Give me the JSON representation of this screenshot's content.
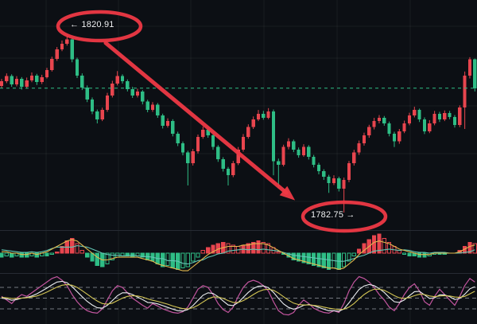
{
  "chart_data": {
    "type": "candlestick",
    "style_note": "dark trading chart, CN color convention (red=up, green=down), no visible axes",
    "annotations": {
      "high": {
        "label": "← 1820.91",
        "value": 1820.91
      },
      "low": {
        "label": "1782.75 →",
        "value": 1782.75
      }
    },
    "price": {
      "last_price": 1809.6,
      "candles": [
        [
          1810.1,
          1811.6,
          1809.6,
          1811.1
        ],
        [
          1811.1,
          1812.8,
          1810.7,
          1812.2
        ],
        [
          1812.2,
          1812.6,
          1809.9,
          1810.4
        ],
        [
          1810.4,
          1812.2,
          1810.0,
          1811.6
        ],
        [
          1811.6,
          1812.0,
          1809.3,
          1809.9
        ],
        [
          1809.9,
          1811.9,
          1809.5,
          1811.3
        ],
        [
          1811.3,
          1813.0,
          1810.9,
          1812.3
        ],
        [
          1812.3,
          1812.7,
          1810.3,
          1810.9
        ],
        [
          1810.9,
          1812.5,
          1810.5,
          1812.0
        ],
        [
          1812.0,
          1814.0,
          1811.7,
          1813.5
        ],
        [
          1813.5,
          1816.4,
          1813.2,
          1815.9
        ],
        [
          1815.9,
          1818.5,
          1815.5,
          1818.0
        ],
        [
          1818.0,
          1819.9,
          1817.6,
          1819.2
        ],
        [
          1819.2,
          1820.91,
          1818.8,
          1820.1
        ],
        [
          1820.1,
          1820.5,
          1815.2,
          1815.8
        ],
        [
          1815.8,
          1816.2,
          1811.8,
          1812.3
        ],
        [
          1812.3,
          1812.8,
          1809.2,
          1809.7
        ],
        [
          1809.7,
          1810.2,
          1806.6,
          1807.2
        ],
        [
          1807.2,
          1807.6,
          1804.0,
          1804.6
        ],
        [
          1804.6,
          1805.0,
          1802.0,
          1802.9
        ],
        [
          1802.9,
          1805.4,
          1802.5,
          1804.9
        ],
        [
          1804.9,
          1808.6,
          1804.5,
          1808.0
        ],
        [
          1808.0,
          1811.2,
          1807.6,
          1810.6
        ],
        [
          1810.6,
          1813.3,
          1810.2,
          1812.2
        ],
        [
          1812.2,
          1812.6,
          1810.6,
          1811.1
        ],
        [
          1811.1,
          1811.5,
          1808.9,
          1809.4
        ],
        [
          1809.4,
          1809.9,
          1807.5,
          1808.0
        ],
        [
          1808.0,
          1809.5,
          1807.6,
          1808.9
        ],
        [
          1808.9,
          1809.2,
          1806.1,
          1806.7
        ],
        [
          1806.7,
          1807.1,
          1804.4,
          1804.9
        ],
        [
          1804.9,
          1806.6,
          1804.5,
          1806.0
        ],
        [
          1806.0,
          1806.4,
          1803.2,
          1803.7
        ],
        [
          1803.7,
          1804.1,
          1800.9,
          1801.5
        ],
        [
          1801.5,
          1803.1,
          1801.1,
          1802.5
        ],
        [
          1802.5,
          1802.9,
          1799.2,
          1799.8
        ],
        [
          1799.8,
          1800.2,
          1797.1,
          1797.7
        ],
        [
          1797.7,
          1798.1,
          1795.1,
          1795.7
        ],
        [
          1795.7,
          1796.1,
          1788.6,
          1793.4
        ],
        [
          1793.4,
          1796.5,
          1792.9,
          1796.0
        ],
        [
          1796.0,
          1799.6,
          1795.5,
          1799.1
        ],
        [
          1799.1,
          1801.3,
          1798.7,
          1800.6
        ],
        [
          1800.6,
          1801.1,
          1798.9,
          1799.4
        ],
        [
          1799.4,
          1799.8,
          1796.3,
          1796.9
        ],
        [
          1796.9,
          1797.3,
          1793.7,
          1794.3
        ],
        [
          1794.3,
          1794.7,
          1791.6,
          1792.2
        ],
        [
          1792.2,
          1792.6,
          1788.6,
          1790.8
        ],
        [
          1790.8,
          1793.9,
          1790.4,
          1793.4
        ],
        [
          1793.4,
          1796.9,
          1793.0,
          1796.3
        ],
        [
          1796.3,
          1799.7,
          1795.9,
          1799.1
        ],
        [
          1799.1,
          1801.8,
          1798.7,
          1801.2
        ],
        [
          1801.2,
          1803.5,
          1800.8,
          1802.9
        ],
        [
          1802.9,
          1804.9,
          1802.5,
          1804.1
        ],
        [
          1804.1,
          1804.7,
          1802.8,
          1803.2
        ],
        [
          1803.2,
          1805.3,
          1802.9,
          1804.6
        ],
        [
          1804.6,
          1805.0,
          1790.8,
          1793.8
        ],
        [
          1793.8,
          1794.4,
          1787.9,
          1793.1
        ],
        [
          1793.1,
          1797.4,
          1792.7,
          1796.9
        ],
        [
          1796.9,
          1798.8,
          1796.4,
          1798.1
        ],
        [
          1798.1,
          1798.5,
          1795.8,
          1796.3
        ],
        [
          1796.3,
          1796.8,
          1794.6,
          1795.1
        ],
        [
          1795.1,
          1797.5,
          1794.8,
          1796.9
        ],
        [
          1796.9,
          1797.3,
          1794.2,
          1794.8
        ],
        [
          1794.8,
          1795.2,
          1792.5,
          1793.1
        ],
        [
          1793.1,
          1793.5,
          1791.0,
          1791.7
        ],
        [
          1791.7,
          1792.1,
          1789.8,
          1790.5
        ],
        [
          1790.5,
          1790.9,
          1787.0,
          1789.1
        ],
        [
          1789.1,
          1790.8,
          1788.7,
          1790.1
        ],
        [
          1790.1,
          1790.5,
          1787.3,
          1787.9
        ],
        [
          1787.9,
          1790.3,
          1782.75,
          1789.8
        ],
        [
          1789.8,
          1793.9,
          1789.3,
          1793.4
        ],
        [
          1793.4,
          1796.3,
          1792.9,
          1795.7
        ],
        [
          1795.7,
          1798.3,
          1795.2,
          1797.7
        ],
        [
          1797.7,
          1800.0,
          1797.2,
          1799.4
        ],
        [
          1799.4,
          1801.7,
          1798.9,
          1801.2
        ],
        [
          1801.2,
          1803.2,
          1800.7,
          1802.5
        ],
        [
          1802.5,
          1803.8,
          1802.0,
          1803.2
        ],
        [
          1803.2,
          1803.6,
          1801.5,
          1802.0
        ],
        [
          1802.0,
          1802.4,
          1799.2,
          1799.8
        ],
        [
          1799.8,
          1800.2,
          1796.9,
          1798.1
        ],
        [
          1798.1,
          1800.8,
          1797.6,
          1800.3
        ],
        [
          1800.3,
          1802.6,
          1799.9,
          1802.0
        ],
        [
          1802.0,
          1804.3,
          1801.6,
          1803.7
        ],
        [
          1803.7,
          1805.6,
          1803.3,
          1804.9
        ],
        [
          1804.9,
          1805.2,
          1802.3,
          1802.9
        ],
        [
          1802.9,
          1803.3,
          1799.7,
          1800.3
        ],
        [
          1800.3,
          1802.7,
          1799.9,
          1802.0
        ],
        [
          1802.0,
          1804.7,
          1801.6,
          1804.1
        ],
        [
          1804.1,
          1804.5,
          1802.3,
          1802.9
        ],
        [
          1802.9,
          1804.8,
          1802.5,
          1804.2
        ],
        [
          1804.2,
          1804.7,
          1802.9,
          1803.4
        ],
        [
          1803.4,
          1803.8,
          1801.1,
          1801.7
        ],
        [
          1801.7,
          1805.9,
          1801.2,
          1805.4
        ],
        [
          1805.4,
          1813.2,
          1800.8,
          1812.3
        ],
        [
          1812.3,
          1816.3,
          1811.7,
          1815.8
        ],
        [
          1815.8,
          1816.0,
          1808.9,
          1809.6
        ]
      ]
    },
    "macd": {
      "hist": [
        -3,
        -2,
        -3,
        -2,
        -3,
        -3,
        -2,
        -3,
        -2,
        -2,
        -1,
        1,
        5,
        9,
        11,
        7,
        2,
        -3,
        -6,
        -9,
        -10,
        -8,
        -5,
        -3,
        -2,
        -2,
        -3,
        -2,
        -3,
        -5,
        -6,
        -8,
        -10,
        -9,
        -11,
        -12,
        -11,
        -10,
        -6,
        -3,
        2,
        4,
        6,
        7,
        8,
        7,
        6,
        5,
        6,
        7,
        8,
        9,
        8,
        7,
        4,
        1,
        -1,
        -3,
        -5,
        -6,
        -7,
        -8,
        -9,
        -10,
        -11,
        -12,
        -11,
        -12,
        -10,
        -6,
        -2,
        3,
        7,
        10,
        13,
        14,
        11,
        8,
        5,
        2,
        -1,
        -2,
        -2,
        -3,
        -3,
        -2,
        -1,
        -1,
        -1,
        0,
        0,
        2,
        5,
        8,
        7
      ],
      "dif": [
        1,
        1,
        0,
        0,
        -1,
        -1,
        0,
        -1,
        0,
        1,
        3,
        5,
        7,
        9,
        10,
        9,
        6,
        3,
        0,
        -3,
        -5,
        -5,
        -4,
        -3,
        -3,
        -3,
        -3,
        -3,
        -4,
        -5,
        -6,
        -8,
        -9,
        -10,
        -11,
        -12,
        -13,
        -13,
        -10,
        -7,
        -4,
        -1,
        1,
        3,
        4,
        5,
        5,
        5,
        6,
        6,
        7,
        7,
        7,
        6,
        4,
        2,
        0,
        -2,
        -4,
        -5,
        -6,
        -7,
        -8,
        -9,
        -10,
        -11,
        -11,
        -12,
        -11,
        -8,
        -5,
        -1,
        2,
        5,
        8,
        9,
        8,
        7,
        5,
        3,
        2,
        1,
        0,
        -1,
        -1,
        -1,
        0,
        0,
        0,
        0,
        0,
        1,
        3,
        5,
        6
      ]
    },
    "kdj": {
      "levels": [
        80,
        50,
        20
      ],
      "k": [
        50,
        48,
        44,
        46,
        50,
        52,
        56,
        62,
        70,
        78,
        87,
        95,
        97,
        93,
        82,
        68,
        54,
        41,
        31,
        23,
        22,
        30,
        43,
        57,
        65,
        65,
        60,
        53,
        46,
        38,
        37,
        34,
        29,
        24,
        19,
        15,
        14,
        18,
        29,
        44,
        58,
        65,
        63,
        54,
        42,
        31,
        29,
        38,
        52,
        66,
        77,
        83,
        84,
        79,
        66,
        49,
        34,
        24,
        19,
        23,
        30,
        32,
        29,
        24,
        19,
        15,
        15,
        13,
        20,
        37,
        56,
        74,
        84,
        88,
        85,
        77,
        66,
        52,
        40,
        38,
        45,
        57,
        68,
        69,
        59,
        49,
        51,
        59,
        59,
        54,
        46,
        49,
        61,
        76,
        82
      ],
      "d": [
        52,
        51,
        49,
        49,
        50,
        51,
        53,
        56,
        61,
        67,
        74,
        81,
        86,
        88,
        86,
        80,
        71,
        61,
        51,
        42,
        35,
        33,
        36,
        43,
        50,
        55,
        57,
        56,
        53,
        48,
        44,
        41,
        37,
        33,
        28,
        24,
        21,
        20,
        23,
        30,
        39,
        48,
        53,
        53,
        49,
        43,
        38,
        38,
        43,
        51,
        60,
        68,
        73,
        75,
        72,
        64,
        54,
        44,
        36,
        32,
        31,
        31,
        30,
        28,
        25,
        22,
        20,
        18,
        19,
        25,
        35,
        48,
        60,
        69,
        75,
        75,
        72,
        65,
        57,
        51,
        49,
        52,
        57,
        61,
        60,
        56,
        54,
        56,
        57,
        56,
        53,
        52,
        55,
        62,
        69
      ],
      "j": [
        55,
        45,
        35,
        50,
        60,
        55,
        65,
        75,
        85,
        95,
        105,
        110,
        100,
        85,
        60,
        40,
        25,
        15,
        10,
        8,
        20,
        45,
        70,
        85,
        80,
        65,
        50,
        40,
        30,
        22,
        35,
        28,
        20,
        15,
        10,
        8,
        12,
        25,
        50,
        75,
        85,
        80,
        60,
        35,
        18,
        10,
        25,
        55,
        80,
        95,
        100,
        95,
        85,
        70,
        40,
        15,
        5,
        3,
        10,
        30,
        45,
        35,
        22,
        15,
        10,
        8,
        15,
        10,
        35,
        70,
        95,
        110,
        105,
        95,
        80,
        60,
        45,
        25,
        15,
        35,
        60,
        80,
        90,
        70,
        40,
        30,
        55,
        75,
        60,
        45,
        30,
        55,
        85,
        105,
        95
      ]
    }
  },
  "colors": {
    "background": "#0c0f14",
    "bull": "#e8454e",
    "bear": "#2ebd85",
    "grid": "rgba(255,255,255,0.055)",
    "separator": "#262b33",
    "last_price_line": "#2ebd85",
    "macd_dif": "#e3b84d",
    "macd_dea": "#63c6b4",
    "kdj_k": "#eceff2",
    "kdj_d": "#d3c554",
    "kdj_j": "#c2559e",
    "level_line": "rgba(220,225,235,0.5)",
    "annotation": "#ee3945",
    "label_text": "#f2f4f7"
  }
}
